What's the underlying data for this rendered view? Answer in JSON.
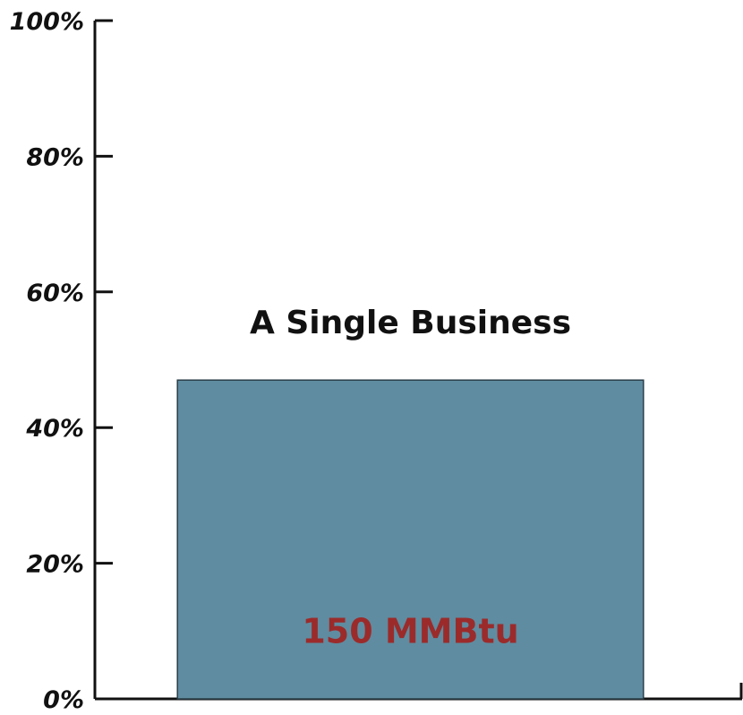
{
  "chart_data": {
    "type": "bar",
    "categories": [
      "A Single Business"
    ],
    "values": [
      47
    ],
    "bar_labels": [
      "150 MMBtu"
    ],
    "ylim": [
      0,
      100
    ],
    "y_ticks": [
      0,
      20,
      40,
      60,
      80,
      100
    ],
    "y_tick_labels": [
      "0%",
      "20%",
      "40%",
      "60%",
      "80%",
      "100%"
    ],
    "title": "",
    "xlabel": "",
    "ylabel": "",
    "grid": false,
    "colors": {
      "bar_fill": "#5f8ca0",
      "bar_stroke": "#2a3e48",
      "bar_label": "#9b2b2b",
      "axis": "#111111"
    }
  }
}
